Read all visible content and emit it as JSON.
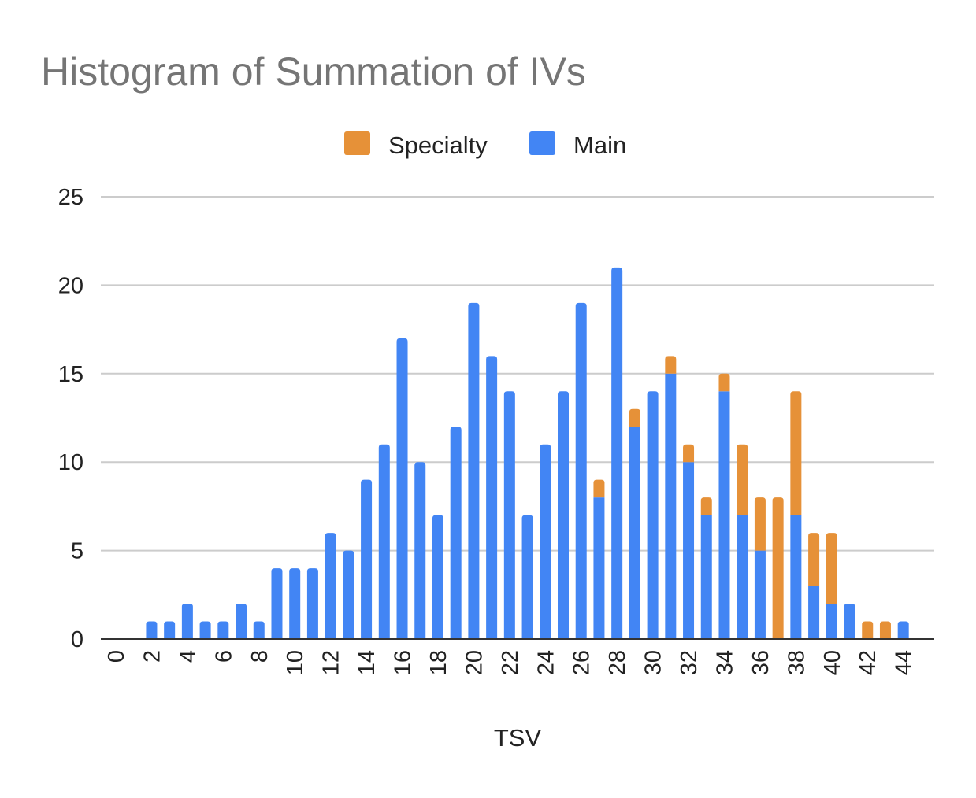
{
  "chart_data": {
    "type": "bar",
    "stacked": true,
    "title": "Histogram of Summation of IVs",
    "xlabel": "TSV",
    "ylabel": "",
    "ylim": [
      0,
      25
    ],
    "yticks": [
      0,
      5,
      10,
      15,
      20,
      25
    ],
    "grid": true,
    "legend_position": "top-center",
    "categories": [
      0,
      1,
      2,
      3,
      4,
      5,
      6,
      7,
      8,
      9,
      10,
      11,
      12,
      13,
      14,
      15,
      16,
      17,
      18,
      19,
      20,
      21,
      22,
      23,
      24,
      25,
      26,
      27,
      28,
      29,
      30,
      31,
      32,
      33,
      34,
      35,
      36,
      37,
      38,
      39,
      40,
      41,
      42,
      43,
      44
    ],
    "xtick_labels": [
      "0",
      "2",
      "4",
      "6",
      "8",
      "10",
      "12",
      "14",
      "16",
      "18",
      "20",
      "22",
      "24",
      "26",
      "28",
      "30",
      "32",
      "34",
      "36",
      "38",
      "40",
      "42",
      "44"
    ],
    "series": [
      {
        "name": "Main",
        "color": "#4285f4",
        "values": [
          0,
          0,
          1,
          1,
          2,
          1,
          1,
          2,
          1,
          4,
          4,
          4,
          6,
          5,
          9,
          11,
          17,
          10,
          7,
          12,
          19,
          16,
          14,
          7,
          11,
          14,
          19,
          8,
          21,
          12,
          14,
          15,
          10,
          7,
          14,
          7,
          5,
          0,
          7,
          3,
          2,
          2,
          0,
          0,
          1
        ]
      },
      {
        "name": "Specialty",
        "color": "#e69138",
        "values": [
          0,
          0,
          0,
          0,
          0,
          0,
          0,
          0,
          0,
          0,
          0,
          0,
          0,
          0,
          0,
          0,
          0,
          0,
          0,
          0,
          0,
          0,
          0,
          0,
          0,
          0,
          0,
          1,
          0,
          1,
          0,
          1,
          1,
          1,
          1,
          4,
          3,
          8,
          7,
          3,
          4,
          0,
          1,
          1,
          0
        ]
      }
    ],
    "legend": [
      {
        "name": "Specialty",
        "color": "#e69138"
      },
      {
        "name": "Main",
        "color": "#4285f4"
      }
    ]
  }
}
